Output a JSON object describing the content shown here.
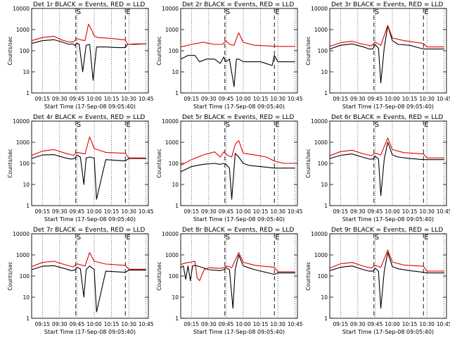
{
  "figure": {
    "xlabel": "Start Time (17-Sep-08 09:05:40)",
    "ylabel": "Counts/sec",
    "x_ticks": [
      "09:15",
      "09:30",
      "09:45",
      "10:00",
      "10:15",
      "10:30",
      "10:45"
    ],
    "y_ticks": [
      "1",
      "10",
      "100",
      "1000",
      "10000"
    ],
    "legend_text": "BLACK = Events, RED = LLD",
    "colors": {
      "events": "#000000",
      "lld": "#e00000"
    }
  },
  "chart_data": [
    {
      "type": "line",
      "title": "Det 1r BLACK = Events, RED = LLD",
      "xlim": [
        "09:05:40",
        "10:47:00"
      ],
      "ylim": [
        1,
        10000
      ],
      "y_scale": "log",
      "markers": [
        {
          "label": "S",
          "x": "09:44"
        },
        {
          "label": "E",
          "x": "10:27"
        }
      ],
      "grid": "vertical dotted",
      "series": [
        {
          "name": "Events",
          "color": "#000000",
          "x": [
            "09:05:40",
            "09:15",
            "09:25",
            "09:32",
            "09:38",
            "09:41",
            "09:43",
            "09:45",
            "09:47",
            "09:50",
            "09:53",
            "09:56",
            "09:59",
            "10:02",
            "10:10",
            "10:20",
            "10:27",
            "10:29",
            "10:35",
            "10:45"
          ],
          "values": [
            220,
            300,
            330,
            260,
            200,
            210,
            180,
            230,
            200,
            10,
            180,
            200,
            4,
            150,
            150,
            140,
            140,
            200,
            200,
            210
          ]
        },
        {
          "name": "LLD",
          "color": "#e00000",
          "x": [
            "09:05:40",
            "09:15",
            "09:25",
            "09:32",
            "09:38",
            "09:42",
            "09:45",
            "09:48",
            "09:52",
            "09:55",
            "09:58",
            "10:00",
            "10:03",
            "10:15",
            "10:27",
            "10:29",
            "10:35",
            "10:45"
          ],
          "values": [
            300,
            420,
            480,
            320,
            260,
            260,
            380,
            330,
            300,
            1800,
            900,
            500,
            420,
            380,
            320,
            200,
            210,
            210
          ]
        }
      ]
    },
    {
      "type": "line",
      "title": "Det 2r BLACK = Events, RED = LLD",
      "xlim": [
        "09:05:40",
        "10:47:00"
      ],
      "ylim": [
        1,
        10000
      ],
      "y_scale": "log",
      "markers": [
        {
          "label": "S",
          "x": "09:44"
        },
        {
          "label": "E",
          "x": "10:27"
        }
      ],
      "grid": "vertical dotted",
      "series": [
        {
          "name": "Events",
          "color": "#000000",
          "x": [
            "09:05:40",
            "09:12",
            "09:18",
            "09:22",
            "09:28",
            "09:35",
            "09:40",
            "09:43",
            "09:45",
            "09:48",
            "09:52",
            "09:54",
            "09:56",
            "10:00",
            "10:05",
            "10:15",
            "10:25",
            "10:27",
            "10:30",
            "10:45"
          ],
          "values": [
            40,
            60,
            60,
            30,
            40,
            40,
            25,
            50,
            30,
            40,
            2,
            40,
            40,
            30,
            30,
            30,
            20,
            60,
            30,
            30
          ]
        },
        {
          "name": "LLD",
          "color": "#e00000",
          "x": [
            "09:05:40",
            "09:15",
            "09:25",
            "09:35",
            "09:42",
            "09:45",
            "09:48",
            "09:52",
            "09:56",
            "10:00",
            "10:10",
            "10:20",
            "10:30",
            "10:45"
          ],
          "values": [
            150,
            200,
            250,
            200,
            200,
            300,
            200,
            180,
            700,
            250,
            180,
            170,
            160,
            160
          ]
        }
      ]
    },
    {
      "type": "line",
      "title": "Det 3r BLACK = Events, RED = LLD",
      "xlim": [
        "09:05:40",
        "10:47:00"
      ],
      "ylim": [
        1,
        10000
      ],
      "y_scale": "log",
      "markers": [
        {
          "label": "S",
          "x": "09:44"
        },
        {
          "label": "E",
          "x": "10:27"
        }
      ],
      "grid": "vertical dotted",
      "series": [
        {
          "name": "Events",
          "color": "#000000",
          "x": [
            "09:05:40",
            "09:15",
            "09:25",
            "09:35",
            "09:40",
            "09:43",
            "09:45",
            "09:48",
            "09:50",
            "09:53",
            "09:56",
            "10:00",
            "10:05",
            "10:15",
            "10:27",
            "10:30",
            "10:45"
          ],
          "values": [
            120,
            180,
            210,
            150,
            120,
            120,
            200,
            130,
            3,
            140,
            1500,
            300,
            200,
            180,
            120,
            120,
            120
          ]
        },
        {
          "name": "LLD",
          "color": "#e00000",
          "x": [
            "09:05:40",
            "09:15",
            "09:25",
            "09:35",
            "09:42",
            "09:45",
            "09:50",
            "09:56",
            "10:00",
            "10:10",
            "10:27",
            "10:30",
            "10:45"
          ],
          "values": [
            160,
            240,
            280,
            200,
            170,
            260,
            180,
            1600,
            400,
            300,
            220,
            150,
            150
          ]
        }
      ]
    },
    {
      "type": "line",
      "title": "Det 4r BLACK = Events, RED = LLD",
      "xlim": [
        "09:05:40",
        "10:47:00"
      ],
      "ylim": [
        1,
        10000
      ],
      "y_scale": "log",
      "markers": [
        {
          "label": "S",
          "x": "09:44"
        },
        {
          "label": "E",
          "x": "10:27"
        }
      ],
      "grid": "vertical dotted",
      "series": [
        {
          "name": "Events",
          "color": "#000000",
          "x": [
            "09:05:40",
            "09:15",
            "09:25",
            "09:35",
            "09:40",
            "09:43",
            "09:45",
            "09:48",
            "09:51",
            "09:53",
            "09:56",
            "10:00",
            "10:02",
            "10:10",
            "10:27",
            "10:30",
            "10:45"
          ],
          "values": [
            170,
            250,
            260,
            180,
            160,
            170,
            250,
            200,
            10,
            180,
            200,
            180,
            2,
            150,
            130,
            170,
            170
          ]
        },
        {
          "name": "LLD",
          "color": "#e00000",
          "x": [
            "09:05:40",
            "09:15",
            "09:25",
            "09:35",
            "09:42",
            "09:45",
            "09:52",
            "09:56",
            "10:00",
            "10:10",
            "10:27",
            "10:30",
            "10:45"
          ],
          "values": [
            240,
            380,
            450,
            300,
            240,
            330,
            280,
            1800,
            500,
            330,
            300,
            180,
            180
          ]
        }
      ]
    },
    {
      "type": "line",
      "title": "Det 5r BLACK = Events, RED = LLD",
      "xlim": [
        "09:05:40",
        "10:47:00"
      ],
      "ylim": [
        1,
        10000
      ],
      "y_scale": "log",
      "markers": [
        {
          "label": "S",
          "x": "09:44"
        },
        {
          "label": "E",
          "x": "10:27"
        }
      ],
      "grid": "vertical dotted",
      "series": [
        {
          "name": "Events",
          "color": "#000000",
          "x": [
            "09:05:40",
            "09:15",
            "09:25",
            "09:35",
            "09:40",
            "09:43",
            "09:45",
            "09:48",
            "09:50",
            "09:53",
            "09:56",
            "10:00",
            "10:05",
            "10:15",
            "10:27",
            "10:30",
            "10:45"
          ],
          "values": [
            40,
            70,
            90,
            100,
            90,
            100,
            90,
            60,
            2,
            300,
            200,
            100,
            80,
            70,
            60,
            60,
            60
          ]
        },
        {
          "name": "LLD",
          "color": "#e00000",
          "x": [
            "09:05:40",
            "09:15",
            "09:25",
            "09:35",
            "09:40",
            "09:43",
            "09:46",
            "09:50",
            "09:53",
            "09:56",
            "10:00",
            "10:10",
            "10:20",
            "10:27",
            "10:35",
            "10:45"
          ],
          "values": [
            80,
            150,
            250,
            350,
            200,
            350,
            250,
            200,
            800,
            1200,
            300,
            250,
            200,
            130,
            100,
            100
          ]
        }
      ]
    },
    {
      "type": "line",
      "title": "Det 6r BLACK = Events, RED = LLD",
      "xlim": [
        "09:05:40",
        "10:47:00"
      ],
      "ylim": [
        1,
        10000
      ],
      "y_scale": "log",
      "markers": [
        {
          "label": "S",
          "x": "09:44"
        },
        {
          "label": "E",
          "x": "10:27"
        }
      ],
      "grid": "vertical dotted",
      "series": [
        {
          "name": "Events",
          "color": "#000000",
          "x": [
            "09:05:40",
            "09:15",
            "09:25",
            "09:35",
            "09:40",
            "09:43",
            "09:45",
            "09:48",
            "09:50",
            "09:53",
            "09:56",
            "10:00",
            "10:05",
            "10:15",
            "10:27",
            "10:30",
            "10:45"
          ],
          "values": [
            170,
            240,
            280,
            190,
            160,
            160,
            220,
            160,
            3,
            160,
            1000,
            250,
            200,
            170,
            150,
            150,
            150
          ]
        },
        {
          "name": "LLD",
          "color": "#e00000",
          "x": [
            "09:05:40",
            "09:15",
            "09:25",
            "09:35",
            "09:42",
            "09:45",
            "09:50",
            "09:56",
            "10:00",
            "10:10",
            "10:27",
            "10:30",
            "10:45"
          ],
          "values": [
            230,
            360,
            420,
            280,
            230,
            310,
            250,
            1600,
            450,
            320,
            280,
            180,
            180
          ]
        }
      ]
    },
    {
      "type": "line",
      "title": "Det 7r BLACK = Events, RED = LLD",
      "xlim": [
        "09:05:40",
        "10:47:00"
      ],
      "ylim": [
        1,
        10000
      ],
      "y_scale": "log",
      "markers": [
        {
          "label": "S",
          "x": "09:44"
        },
        {
          "label": "E",
          "x": "10:27"
        }
      ],
      "grid": "vertical dotted",
      "series": [
        {
          "name": "Events",
          "color": "#000000",
          "x": [
            "09:05:40",
            "09:15",
            "09:25",
            "09:35",
            "09:40",
            "09:43",
            "09:45",
            "09:48",
            "09:51",
            "09:53",
            "09:56",
            "10:00",
            "10:02",
            "10:10",
            "10:27",
            "10:30",
            "10:45"
          ],
          "values": [
            200,
            290,
            310,
            220,
            180,
            190,
            260,
            220,
            10,
            200,
            300,
            200,
            2,
            170,
            150,
            190,
            190
          ]
        },
        {
          "name": "LLD",
          "color": "#e00000",
          "x": [
            "09:05:40",
            "09:15",
            "09:25",
            "09:35",
            "09:42",
            "09:45",
            "09:52",
            "09:56",
            "10:00",
            "10:10",
            "10:27",
            "10:30",
            "10:45"
          ],
          "values": [
            280,
            440,
            500,
            340,
            270,
            380,
            300,
            1300,
            500,
            370,
            320,
            210,
            210
          ]
        }
      ]
    },
    {
      "type": "line",
      "title": "Det 8r BLACK = Events, RED = LLD",
      "xlim": [
        "09:05:40",
        "10:47:00"
      ],
      "ylim": [
        1,
        10000
      ],
      "y_scale": "log",
      "markers": [
        {
          "label": "S",
          "x": "09:44"
        },
        {
          "label": "E",
          "x": "10:27"
        }
      ],
      "grid": "vertical dotted",
      "series": [
        {
          "name": "Events",
          "color": "#000000",
          "x": [
            "09:05:40",
            "09:08",
            "09:10",
            "09:12",
            "09:14",
            "09:16",
            "09:18",
            "09:22",
            "09:30",
            "09:40",
            "09:43",
            "09:45",
            "09:48",
            "09:51",
            "09:53",
            "09:56",
            "10:00",
            "10:10",
            "10:27",
            "10:30",
            "10:45"
          ],
          "values": [
            250,
            300,
            70,
            300,
            60,
            300,
            320,
            280,
            200,
            180,
            200,
            250,
            200,
            3,
            200,
            1000,
            300,
            200,
            120,
            140,
            140
          ]
        },
        {
          "name": "LLD",
          "color": "#e00000",
          "x": [
            "09:05:40",
            "09:10",
            "09:14",
            "09:18",
            "09:20",
            "09:22",
            "09:26",
            "09:30",
            "09:40",
            "09:43",
            "09:46",
            "09:50",
            "09:56",
            "10:00",
            "10:10",
            "10:27",
            "10:30",
            "10:45"
          ],
          "values": [
            350,
            420,
            450,
            500,
            80,
            60,
            200,
            250,
            230,
            250,
            300,
            250,
            1300,
            450,
            320,
            260,
            160,
            160
          ]
        }
      ]
    },
    {
      "type": "line",
      "title": "Det 9r BLACK = Events, RED = LLD",
      "xlim": [
        "09:05:40",
        "10:47:00"
      ],
      "ylim": [
        1,
        10000
      ],
      "y_scale": "log",
      "markers": [
        {
          "label": "S",
          "x": "09:44"
        },
        {
          "label": "E",
          "x": "10:27"
        }
      ],
      "grid": "vertical dotted",
      "series": [
        {
          "name": "Events",
          "color": "#000000",
          "x": [
            "09:05:40",
            "09:15",
            "09:25",
            "09:35",
            "09:40",
            "09:43",
            "09:45",
            "09:48",
            "09:50",
            "09:53",
            "09:56",
            "10:00",
            "10:05",
            "10:15",
            "10:27",
            "10:30",
            "10:45"
          ],
          "values": [
            180,
            260,
            300,
            200,
            170,
            170,
            240,
            170,
            3,
            170,
            1300,
            280,
            220,
            180,
            150,
            140,
            140
          ]
        },
        {
          "name": "LLD",
          "color": "#e00000",
          "x": [
            "09:05:40",
            "09:15",
            "09:25",
            "09:35",
            "09:42",
            "09:45",
            "09:50",
            "09:56",
            "10:00",
            "10:10",
            "10:27",
            "10:30",
            "10:45"
          ],
          "values": [
            240,
            380,
            440,
            290,
            240,
            320,
            260,
            1700,
            460,
            330,
            290,
            170,
            170
          ]
        }
      ]
    }
  ]
}
